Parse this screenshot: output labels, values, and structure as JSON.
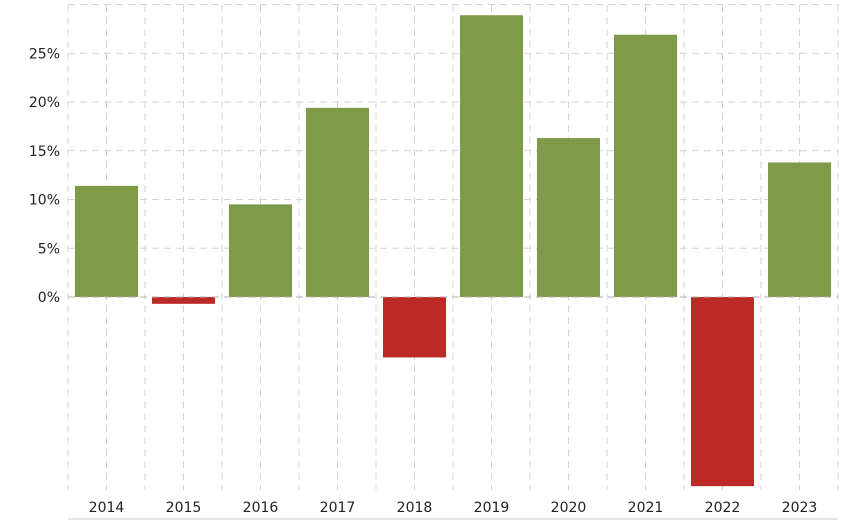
{
  "chart_data": {
    "type": "bar",
    "categories": [
      "2014",
      "2015",
      "2016",
      "2017",
      "2018",
      "2019",
      "2020",
      "2021",
      "2022",
      "2023"
    ],
    "values": [
      11.4,
      -0.7,
      9.5,
      19.4,
      -6.2,
      28.9,
      16.3,
      26.9,
      -19.4,
      13.8
    ],
    "title": "",
    "xlabel": "",
    "ylabel": "",
    "ylim": [
      -20,
      30
    ],
    "yticks": [
      0,
      5,
      10,
      15,
      20,
      25
    ],
    "ytick_labels": [
      "0%",
      "5%",
      "10%",
      "15%",
      "20%",
      "25%"
    ],
    "grid": true,
    "colors": {
      "positive": "#7f9a48",
      "negative": "#bb2a27"
    }
  }
}
